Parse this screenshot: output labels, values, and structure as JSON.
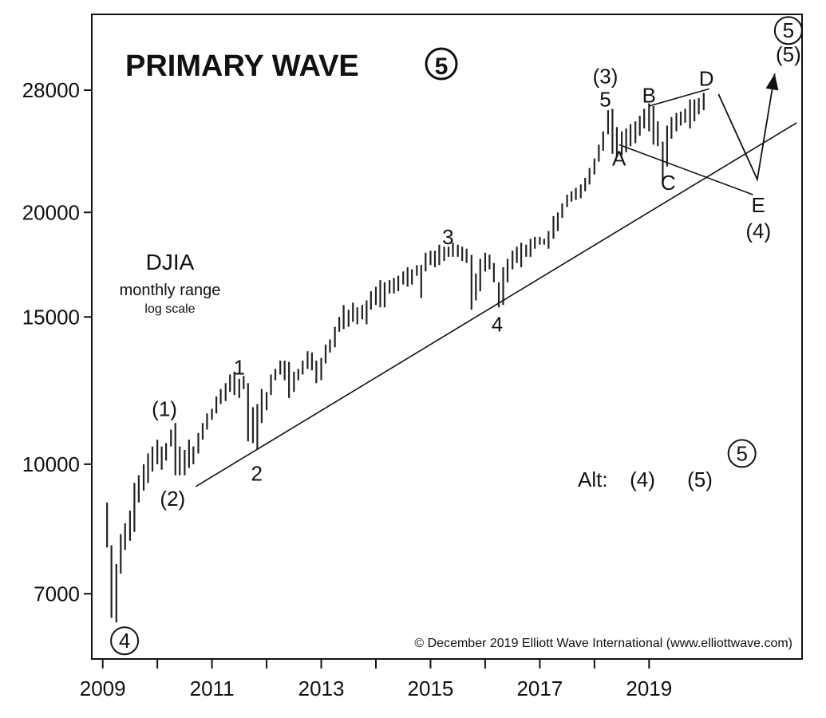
{
  "chart_data": {
    "type": "ohlc",
    "title": "PRIMARY WAVE",
    "title_symbol": "⑤",
    "subtitle": "DJIA",
    "subtitle_lines": [
      "monthly range",
      "log scale"
    ],
    "copyright": "© December 2019 Elliott Wave International (www.elliottwave.com)",
    "log_scale": true,
    "grid": false,
    "x_range": [
      2008.8,
      2021.8
    ],
    "y_range": [
      5850,
      34500
    ],
    "y_ticks": [
      {
        "value": 7000,
        "label": "7000"
      },
      {
        "value": 10000,
        "label": "10000"
      },
      {
        "value": 15000,
        "label": "15000"
      },
      {
        "value": 20000,
        "label": "20000"
      },
      {
        "value": 28000,
        "label": "28000"
      }
    ],
    "x_ticks": [
      {
        "value": 2009,
        "label": "2009"
      },
      {
        "value": 2011,
        "label": "2011"
      },
      {
        "value": 2013,
        "label": "2013"
      },
      {
        "value": 2015,
        "label": "2015"
      },
      {
        "value": 2017,
        "label": "2017"
      },
      {
        "value": 2019,
        "label": "2019"
      }
    ],
    "minor_x_ticks": [
      2010,
      2012,
      2014,
      2016,
      2018
    ],
    "monthly_ranges": [
      [
        2009.08,
        7950,
        9000
      ],
      [
        2009.16,
        6550,
        8000
      ],
      [
        2009.25,
        6470,
        7600
      ],
      [
        2009.33,
        7400,
        8250
      ],
      [
        2009.41,
        7900,
        8500
      ],
      [
        2009.5,
        8100,
        8800
      ],
      [
        2009.58,
        8300,
        9500
      ],
      [
        2009.66,
        9000,
        9700
      ],
      [
        2009.75,
        9300,
        10000
      ],
      [
        2009.83,
        9500,
        10300
      ],
      [
        2009.91,
        9800,
        10500
      ],
      [
        2010.0,
        10000,
        10700
      ],
      [
        2010.08,
        9850,
        10500
      ],
      [
        2010.16,
        10100,
        10600
      ],
      [
        2010.25,
        10500,
        11000
      ],
      [
        2010.33,
        9700,
        11200
      ],
      [
        2010.41,
        9700,
        10500
      ],
      [
        2010.5,
        9700,
        10400
      ],
      [
        2010.58,
        9900,
        10700
      ],
      [
        2010.66,
        10000,
        10500
      ],
      [
        2010.75,
        10300,
        10900
      ],
      [
        2010.83,
        10700,
        11200
      ],
      [
        2010.91,
        11000,
        11500
      ],
      [
        2011.0,
        11300,
        11650
      ],
      [
        2011.08,
        11500,
        12050
      ],
      [
        2011.16,
        11800,
        12300
      ],
      [
        2011.25,
        11900,
        12500
      ],
      [
        2011.33,
        12200,
        12800
      ],
      [
        2011.41,
        12100,
        12900
      ],
      [
        2011.5,
        12000,
        12650
      ],
      [
        2011.58,
        12300,
        12750
      ],
      [
        2011.66,
        10650,
        12500
      ],
      [
        2011.75,
        10600,
        11700
      ],
      [
        2011.83,
        10400,
        11800
      ],
      [
        2011.91,
        11200,
        12300
      ],
      [
        2012.0,
        11600,
        12200
      ],
      [
        2012.08,
        12100,
        12800
      ],
      [
        2012.16,
        12600,
        13000
      ],
      [
        2012.25,
        12800,
        13300
      ],
      [
        2012.33,
        12600,
        13300
      ],
      [
        2012.41,
        12000,
        13250
      ],
      [
        2012.5,
        12200,
        12900
      ],
      [
        2012.58,
        12600,
        13000
      ],
      [
        2012.66,
        12800,
        13300
      ],
      [
        2012.75,
        13000,
        13650
      ],
      [
        2012.83,
        12950,
        13600
      ],
      [
        2012.91,
        12500,
        13300
      ],
      [
        2013.0,
        12600,
        13400
      ],
      [
        2013.08,
        13200,
        13900
      ],
      [
        2013.16,
        13600,
        14100
      ],
      [
        2013.25,
        13800,
        14600
      ],
      [
        2013.33,
        14400,
        15000
      ],
      [
        2013.41,
        14500,
        15500
      ],
      [
        2013.5,
        14600,
        15300
      ],
      [
        2013.58,
        14800,
        15600
      ],
      [
        2013.66,
        14700,
        15400
      ],
      [
        2013.75,
        14900,
        15500
      ],
      [
        2013.83,
        14700,
        15700
      ],
      [
        2013.91,
        15300,
        16100
      ],
      [
        2014.0,
        15500,
        16300
      ],
      [
        2014.08,
        15400,
        16600
      ],
      [
        2014.16,
        15400,
        16500
      ],
      [
        2014.25,
        16000,
        16600
      ],
      [
        2014.33,
        16000,
        16700
      ],
      [
        2014.41,
        16100,
        16800
      ],
      [
        2014.5,
        16400,
        17000
      ],
      [
        2014.58,
        16300,
        17200
      ],
      [
        2014.66,
        16400,
        17100
      ],
      [
        2014.75,
        16800,
        17300
      ],
      [
        2014.83,
        15800,
        17300
      ],
      [
        2014.91,
        17000,
        17900
      ],
      [
        2015.0,
        17300,
        18000
      ],
      [
        2015.08,
        17200,
        18000
      ],
      [
        2015.16,
        17300,
        18300
      ],
      [
        2015.25,
        17500,
        18200
      ],
      [
        2015.33,
        17700,
        18200
      ],
      [
        2015.41,
        17700,
        18400
      ],
      [
        2015.5,
        17700,
        18300
      ],
      [
        2015.58,
        17500,
        18200
      ],
      [
        2015.66,
        17400,
        18100
      ],
      [
        2015.75,
        15300,
        17800
      ],
      [
        2015.83,
        15700,
        16900
      ],
      [
        2015.91,
        16100,
        17600
      ],
      [
        2016.0,
        17000,
        17900
      ],
      [
        2016.08,
        17100,
        17800
      ],
      [
        2016.16,
        16500,
        17400
      ],
      [
        2016.25,
        15400,
        16500
      ],
      [
        2016.33,
        15500,
        17200
      ],
      [
        2016.41,
        16500,
        17600
      ],
      [
        2016.5,
        17100,
        18000
      ],
      [
        2016.58,
        17400,
        18200
      ],
      [
        2016.66,
        17200,
        18400
      ],
      [
        2016.75,
        17700,
        18300
      ],
      [
        2016.83,
        17700,
        18600
      ],
      [
        2016.91,
        18100,
        18700
      ],
      [
        2017.0,
        18300,
        18700
      ],
      [
        2017.08,
        18300,
        18600
      ],
      [
        2017.16,
        18100,
        19000
      ],
      [
        2017.25,
        18600,
        19800
      ],
      [
        2017.33,
        19000,
        20000
      ],
      [
        2017.41,
        19700,
        20500
      ],
      [
        2017.5,
        20300,
        21000
      ],
      [
        2017.58,
        20600,
        21200
      ],
      [
        2017.66,
        20700,
        21400
      ],
      [
        2017.75,
        20800,
        21600
      ],
      [
        2017.83,
        21200,
        22000
      ],
      [
        2017.91,
        21600,
        22600
      ],
      [
        2018.0,
        22200,
        23200
      ],
      [
        2018.08,
        23000,
        24100
      ],
      [
        2018.16,
        23700,
        25000
      ],
      [
        2018.25,
        24800,
        26500
      ],
      [
        2018.33,
        23500,
        26600
      ],
      [
        2018.41,
        23300,
        25300
      ],
      [
        2018.5,
        23400,
        25000
      ],
      [
        2018.58,
        23600,
        25200
      ],
      [
        2018.66,
        24000,
        25500
      ],
      [
        2018.75,
        24200,
        25700
      ],
      [
        2018.83,
        24700,
        26100
      ],
      [
        2018.91,
        25200,
        26600
      ],
      [
        2019.0,
        25000,
        27000
      ],
      [
        2019.08,
        24100,
        26800
      ],
      [
        2019.16,
        24000,
        25700
      ],
      [
        2019.25,
        21700,
        24300
      ],
      [
        2019.33,
        22700,
        25400
      ],
      [
        2019.41,
        24500,
        26000
      ],
      [
        2019.5,
        25000,
        26300
      ],
      [
        2019.58,
        25400,
        26400
      ],
      [
        2019.66,
        25600,
        26600
      ],
      [
        2019.75,
        25200,
        27300
      ],
      [
        2019.83,
        25700,
        27300
      ],
      [
        2019.91,
        26200,
        27400
      ],
      [
        2020.0,
        26500,
        27800
      ]
    ],
    "trendline": [
      [
        2010.7,
        9400
      ],
      [
        2021.7,
        25600
      ]
    ],
    "triangle_upper": [
      [
        2019.0,
        26800
      ],
      [
        2020.1,
        28100
      ]
    ],
    "triangle_lower": [
      [
        2018.45,
        24100
      ],
      [
        2020.9,
        21000
      ]
    ],
    "projection": [
      [
        2020.27,
        27700
      ],
      [
        2020.98,
        21900
      ],
      [
        2021.3,
        29300
      ]
    ],
    "wave_labels": [
      {
        "text": "(1)",
        "x": 2010.13,
        "y": 11650
      },
      {
        "text": "(2)",
        "x": 2010.28,
        "y": 9100
      },
      {
        "text": "1",
        "x": 2011.5,
        "y": 13050
      },
      {
        "text": "2",
        "x": 2011.82,
        "y": 9750
      },
      {
        "text": "3",
        "x": 2015.32,
        "y": 18700
      },
      {
        "text": "4",
        "x": 2016.22,
        "y": 14700
      },
      {
        "text": "(3)",
        "x": 2018.2,
        "y": 29100
      },
      {
        "text": "5",
        "x": 2018.2,
        "y": 27300
      },
      {
        "text": "A",
        "x": 2018.45,
        "y": 23200
      },
      {
        "text": "B",
        "x": 2019.0,
        "y": 27600
      },
      {
        "text": "C",
        "x": 2019.35,
        "y": 21700
      },
      {
        "text": "D",
        "x": 2020.05,
        "y": 28900
      },
      {
        "text": "E",
        "x": 2021.0,
        "y": 20400
      },
      {
        "text": "(4)",
        "x": 2021.0,
        "y": 19000
      },
      {
        "text": "(5)",
        "x": 2021.55,
        "y": 30900
      }
    ],
    "circled_labels": [
      {
        "text": "4",
        "x": 2009.4,
        "y": 6150
      },
      {
        "text": "5",
        "x": 2021.55,
        "y": 33000
      },
      {
        "text": "5",
        "x": 2020.7,
        "y": 10300
      }
    ],
    "alt_label": {
      "text": "Alt:",
      "x": 2018.5,
      "y": 9650
    },
    "alt_wave": {
      "text": "(4)",
      "x": 2019.17,
      "y": 9650
    },
    "alt_wave_2": {
      "text": "(5)",
      "x": 2020.7,
      "y": 9650
    }
  }
}
